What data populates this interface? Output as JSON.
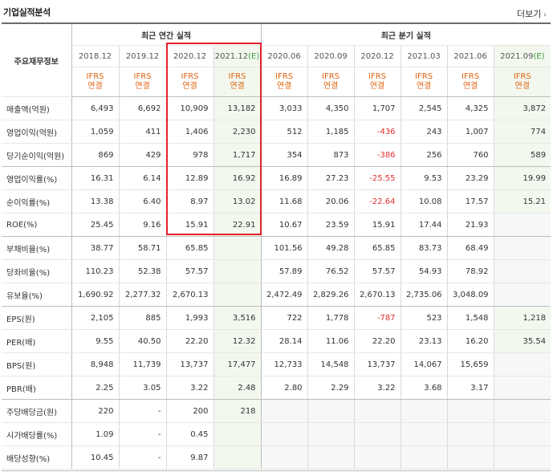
{
  "section_title": "기업실적분석",
  "more_link": "더보기",
  "header": {
    "corner": "주요재무정보",
    "annual_title": "최근 연간 실적",
    "quarterly_title": "최근 분기 실적",
    "annual_periods": [
      "2018.12",
      "2019.12",
      "2020.12",
      "2021.12"
    ],
    "annual_estimate_mark": "(E)",
    "quarterly_periods": [
      "2020.06",
      "2020.09",
      "2020.12",
      "2021.03",
      "2021.06",
      "2021.09"
    ],
    "quarterly_estimate_mark": "(E)",
    "basis_top": "IFRS",
    "basis_bottom": "연결"
  },
  "rows": [
    {
      "label": "매출액(억원)",
      "values": [
        "6,493",
        "6,692",
        "10,909",
        "13,182",
        "3,033",
        "4,350",
        "1,707",
        "2,545",
        "4,325",
        "3,872"
      ]
    },
    {
      "label": "영업이익(억원)",
      "values": [
        "1,059",
        "411",
        "1,406",
        "2,230",
        "512",
        "1,185",
        "-436",
        "243",
        "1,007",
        "774"
      ]
    },
    {
      "label": "당기순이익(억원)",
      "values": [
        "869",
        "429",
        "978",
        "1,717",
        "354",
        "873",
        "-386",
        "256",
        "760",
        "589"
      ]
    },
    {
      "label": "영업이익률(%)",
      "values": [
        "16.31",
        "6.14",
        "12.89",
        "16.92",
        "16.89",
        "27.23",
        "-25.55",
        "9.53",
        "23.29",
        "19.99"
      ]
    },
    {
      "label": "순이익률(%)",
      "values": [
        "13.38",
        "6.40",
        "8.97",
        "13.02",
        "11.68",
        "20.06",
        "-22.64",
        "10.08",
        "17.57",
        "15.21"
      ]
    },
    {
      "label": "ROE(%)",
      "values": [
        "25.45",
        "9.16",
        "15.91",
        "22.91",
        "10.67",
        "23.59",
        "15.91",
        "17.44",
        "21.93",
        ""
      ]
    },
    {
      "label": "부채비율(%)",
      "values": [
        "38.77",
        "58.71",
        "65.85",
        "",
        "101.56",
        "49.28",
        "65.85",
        "83.73",
        "68.49",
        ""
      ]
    },
    {
      "label": "당좌비율(%)",
      "values": [
        "110.23",
        "52.38",
        "57.57",
        "",
        "57.89",
        "76.52",
        "57.57",
        "54.93",
        "78.92",
        ""
      ]
    },
    {
      "label": "유보율(%)",
      "values": [
        "1,690.92",
        "2,277.32",
        "2,670.13",
        "",
        "2,472.49",
        "2,829.26",
        "2,670.13",
        "2,735.06",
        "3,048.09",
        ""
      ]
    },
    {
      "label": "EPS(원)",
      "values": [
        "2,105",
        "885",
        "1,993",
        "3,516",
        "722",
        "1,778",
        "-787",
        "523",
        "1,548",
        "1,218"
      ]
    },
    {
      "label": "PER(배)",
      "values": [
        "9.55",
        "40.50",
        "22.20",
        "12.32",
        "28.14",
        "11.06",
        "22.20",
        "23.13",
        "16.20",
        "35.54"
      ]
    },
    {
      "label": "BPS(원)",
      "values": [
        "8,948",
        "11,739",
        "13,737",
        "17,477",
        "12,733",
        "14,548",
        "13,737",
        "14,067",
        "15,659",
        ""
      ]
    },
    {
      "label": "PBR(배)",
      "values": [
        "2.25",
        "3.05",
        "3.22",
        "2.48",
        "2.80",
        "2.29",
        "3.22",
        "3.68",
        "3.17",
        ""
      ]
    },
    {
      "label": "주당배당금(원)",
      "values": [
        "220",
        "-",
        "200",
        "218",
        "",
        "",
        "",
        "",
        "",
        ""
      ]
    },
    {
      "label": "시가배당률(%)",
      "values": [
        "1.09",
        "-",
        "0.45",
        "",
        "",
        "",
        "",
        "",
        "",
        ""
      ]
    },
    {
      "label": "배당성향(%)",
      "values": [
        "10.45",
        "-",
        "9.87",
        "",
        "",
        "",
        "",
        "",
        "",
        ""
      ]
    }
  ]
}
